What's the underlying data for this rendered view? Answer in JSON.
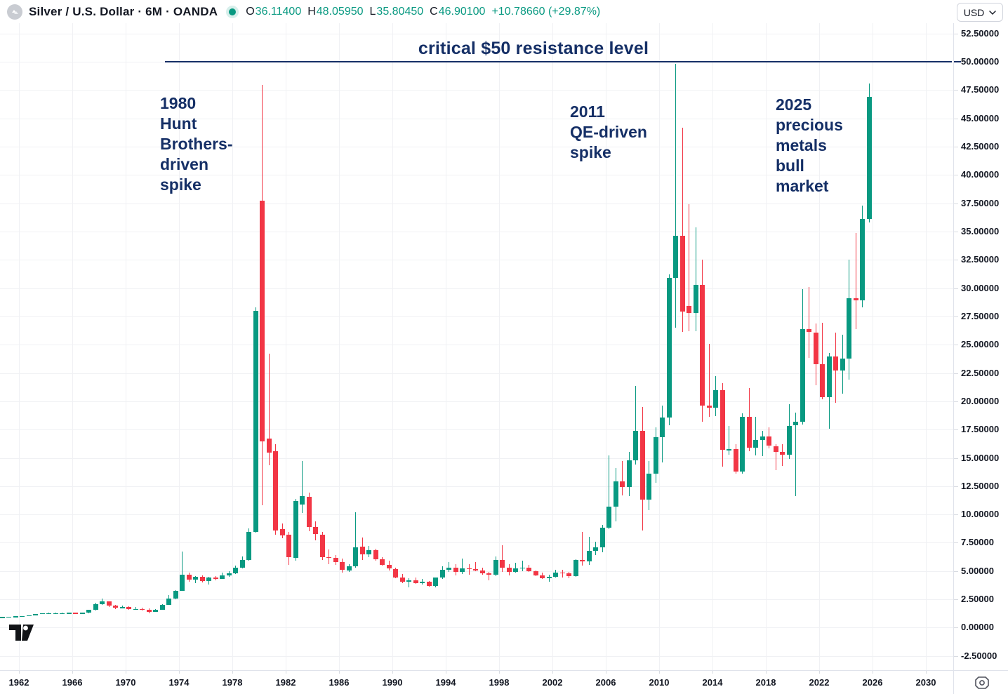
{
  "header": {
    "title": "Silver / U.S. Dollar · 6M · OANDA",
    "ohlc": {
      "o_label": "O",
      "o_value": "36.11400",
      "h_label": "H",
      "h_value": "48.05950",
      "l_label": "L",
      "l_value": "35.80450",
      "c_label": "C",
      "c_value": "46.90100",
      "change": "+10.78660 (+29.87%)"
    }
  },
  "currency_selector": {
    "value": "USD"
  },
  "annotations": {
    "resistance_label": "critical $50 resistance level",
    "a1980": "1980\nHunt\nBrothers-\ndriven\nspike",
    "a2011": "2011\nQE-driven\nspike",
    "a2025": "2025\nprecious\nmetals\nbull\nmarket"
  },
  "colors": {
    "up": "#089981",
    "down": "#f23645",
    "annotation": "#152f66",
    "axis_text": "#131722",
    "grid": "#f0f1f4"
  },
  "chart_data": {
    "type": "candlestick",
    "title": "Silver / U.S. Dollar",
    "timeframe": "6M",
    "exchange": "OANDA",
    "resistance_level": 50,
    "y_ticks": [
      -2.5,
      0,
      2.5,
      5,
      7.5,
      10,
      12.5,
      15,
      17.5,
      20,
      22.5,
      25,
      27.5,
      30,
      32.5,
      35,
      37.5,
      40,
      42.5,
      45,
      47.5,
      50,
      52.5
    ],
    "x_ticks": [
      1962,
      1966,
      1970,
      1974,
      1978,
      1982,
      1986,
      1990,
      1994,
      1998,
      2002,
      2006,
      2010,
      2014,
      2018,
      2022,
      2026,
      2030
    ],
    "series_format": [
      "period",
      "open",
      "high",
      "low",
      "close"
    ],
    "series": [
      [
        "1960H1",
        0.92,
        0.94,
        0.9,
        0.92
      ],
      [
        "1960H2",
        0.92,
        0.94,
        0.9,
        0.93
      ],
      [
        "1961H1",
        0.93,
        0.96,
        0.91,
        0.94
      ],
      [
        "1961H2",
        0.94,
        1.0,
        0.92,
        0.99
      ],
      [
        "1962H1",
        0.99,
        1.05,
        0.97,
        1.04
      ],
      [
        "1962H2",
        1.04,
        1.1,
        1.02,
        1.09
      ],
      [
        "1963H1",
        1.09,
        1.22,
        1.07,
        1.21
      ],
      [
        "1963H2",
        1.21,
        1.29,
        1.19,
        1.28
      ],
      [
        "1964H1",
        1.28,
        1.3,
        1.26,
        1.29
      ],
      [
        "1964H2",
        1.29,
        1.3,
        1.27,
        1.29
      ],
      [
        "1965H1",
        1.29,
        1.3,
        1.27,
        1.29
      ],
      [
        "1965H2",
        1.29,
        1.31,
        1.27,
        1.3
      ],
      [
        "1966H1",
        1.3,
        1.31,
        1.28,
        1.29
      ],
      [
        "1966H2",
        1.29,
        1.31,
        1.28,
        1.3
      ],
      [
        "1967H1",
        1.3,
        1.6,
        1.28,
        1.55
      ],
      [
        "1967H2",
        1.55,
        2.2,
        1.53,
        2.06
      ],
      [
        "1968H1",
        2.06,
        2.56,
        2.0,
        2.3
      ],
      [
        "1968H2",
        2.3,
        2.35,
        1.85,
        1.95
      ],
      [
        "1969H1",
        1.95,
        2.02,
        1.65,
        1.76
      ],
      [
        "1969H2",
        1.76,
        1.95,
        1.68,
        1.8
      ],
      [
        "1970H1",
        1.8,
        1.86,
        1.57,
        1.63
      ],
      [
        "1970H2",
        1.63,
        1.8,
        1.55,
        1.64
      ],
      [
        "1971H1",
        1.64,
        1.75,
        1.52,
        1.6
      ],
      [
        "1971H2",
        1.6,
        1.68,
        1.28,
        1.39
      ],
      [
        "1972H1",
        1.39,
        1.62,
        1.36,
        1.58
      ],
      [
        "1972H2",
        1.58,
        2.05,
        1.56,
        2.03
      ],
      [
        "1973H1",
        2.03,
        2.9,
        1.98,
        2.56
      ],
      [
        "1973H2",
        2.56,
        3.3,
        2.5,
        3.27
      ],
      [
        "1974H1",
        3.27,
        6.7,
        3.22,
        4.65
      ],
      [
        "1974H2",
        4.65,
        4.85,
        4.05,
        4.25
      ],
      [
        "1975H1",
        4.25,
        4.58,
        3.95,
        4.47
      ],
      [
        "1975H2",
        4.47,
        4.62,
        3.98,
        4.1
      ],
      [
        "1976H1",
        4.1,
        4.52,
        3.83,
        4.4
      ],
      [
        "1976H2",
        4.4,
        4.58,
        4.18,
        4.33
      ],
      [
        "1977H1",
        4.33,
        4.86,
        4.28,
        4.62
      ],
      [
        "1977H2",
        4.62,
        4.98,
        4.5,
        4.81
      ],
      [
        "1978H1",
        4.81,
        5.46,
        4.75,
        5.32
      ],
      [
        "1978H2",
        5.32,
        6.3,
        5.22,
        5.96
      ],
      [
        "1979H1",
        5.96,
        8.8,
        5.9,
        8.45
      ],
      [
        "1979H2",
        8.45,
        28.3,
        8.4,
        28.0
      ],
      [
        "1980H1",
        37.75,
        47.98,
        10.8,
        16.45
      ],
      [
        "1980H2",
        16.7,
        24.2,
        14.35,
        15.45
      ],
      [
        "1981H1",
        15.6,
        16.2,
        8.2,
        8.55
      ],
      [
        "1981H2",
        8.7,
        9.2,
        7.9,
        8.15
      ],
      [
        "1982H1",
        8.2,
        8.45,
        5.55,
        6.2
      ],
      [
        "1982H2",
        6.15,
        11.4,
        5.9,
        11.2
      ],
      [
        "1983H1",
        10.9,
        14.72,
        10.15,
        11.6
      ],
      [
        "1983H2",
        11.55,
        11.95,
        8.5,
        8.9
      ],
      [
        "1984H1",
        8.9,
        9.4,
        7.7,
        8.3
      ],
      [
        "1984H2",
        8.2,
        8.45,
        6.0,
        6.25
      ],
      [
        "1985H1",
        6.25,
        6.9,
        5.6,
        6.15
      ],
      [
        "1985H2",
        6.15,
        6.4,
        5.55,
        5.8
      ],
      [
        "1986H1",
        5.8,
        6.1,
        4.85,
        5.1
      ],
      [
        "1986H2",
        5.05,
        5.6,
        4.95,
        5.45
      ],
      [
        "1987H1",
        5.4,
        10.2,
        5.3,
        7.1
      ],
      [
        "1987H2",
        7.15,
        7.95,
        6.0,
        6.45
      ],
      [
        "1988H1",
        6.45,
        7.2,
        6.2,
        6.85
      ],
      [
        "1988H2",
        6.85,
        7.0,
        5.9,
        6.05
      ],
      [
        "1989H1",
        6.05,
        6.2,
        5.45,
        5.55
      ],
      [
        "1989H2",
        5.55,
        5.9,
        5.05,
        5.2
      ],
      [
        "1990H1",
        5.2,
        5.3,
        4.35,
        4.45
      ],
      [
        "1990H2",
        4.45,
        4.72,
        3.93,
        4.05
      ],
      [
        "1991H1",
        4.05,
        4.35,
        3.55,
        4.2
      ],
      [
        "1991H2",
        4.2,
        4.45,
        3.85,
        3.9
      ],
      [
        "1992H1",
        3.95,
        4.3,
        3.8,
        4.05
      ],
      [
        "1992H2",
        4.05,
        4.12,
        3.64,
        3.7
      ],
      [
        "1993H1",
        3.7,
        4.45,
        3.55,
        4.4
      ],
      [
        "1993H2",
        4.4,
        5.45,
        4.3,
        5.1
      ],
      [
        "1994H1",
        5.1,
        5.78,
        4.95,
        5.3
      ],
      [
        "1994H2",
        5.3,
        5.6,
        4.6,
        4.9
      ],
      [
        "1995H1",
        4.9,
        6.1,
        4.75,
        5.25
      ],
      [
        "1995H2",
        5.25,
        5.62,
        4.7,
        5.15
      ],
      [
        "1996H1",
        5.15,
        5.8,
        5.0,
        5.05
      ],
      [
        "1996H2",
        5.05,
        5.3,
        4.7,
        4.8
      ],
      [
        "1997H1",
        4.8,
        4.92,
        4.18,
        4.7
      ],
      [
        "1997H2",
        4.7,
        6.3,
        4.55,
        6.0
      ],
      [
        "1998H1",
        6.0,
        7.26,
        4.9,
        5.3
      ],
      [
        "1998H2",
        5.3,
        5.58,
        4.6,
        4.9
      ],
      [
        "1999H1",
        4.9,
        5.76,
        4.85,
        5.25
      ],
      [
        "1999H2",
        5.25,
        5.92,
        5.0,
        5.32
      ],
      [
        "2000H1",
        5.32,
        5.55,
        4.9,
        4.98
      ],
      [
        "2000H2",
        4.98,
        5.05,
        4.55,
        4.62
      ],
      [
        "2001H1",
        4.62,
        4.85,
        4.3,
        4.36
      ],
      [
        "2001H2",
        4.36,
        4.66,
        4.03,
        4.52
      ],
      [
        "2002H1",
        4.52,
        5.1,
        4.4,
        4.86
      ],
      [
        "2002H2",
        4.86,
        5.12,
        4.4,
        4.79
      ],
      [
        "2003H1",
        4.79,
        4.92,
        4.35,
        4.55
      ],
      [
        "2003H2",
        4.55,
        6.02,
        4.5,
        5.96
      ],
      [
        "2004H1",
        5.96,
        8.45,
        5.5,
        5.86
      ],
      [
        "2004H2",
        5.86,
        8.05,
        5.55,
        6.81
      ],
      [
        "2005H1",
        6.81,
        7.62,
        6.4,
        7.09
      ],
      [
        "2005H2",
        7.09,
        9.05,
        6.64,
        8.82
      ],
      [
        "2006H1",
        8.82,
        15.2,
        8.7,
        10.7
      ],
      [
        "2006H2",
        10.7,
        14.1,
        9.4,
        12.9
      ],
      [
        "2007H1",
        12.9,
        14.7,
        11.7,
        12.45
      ],
      [
        "2007H2",
        12.45,
        15.5,
        11.6,
        14.8
      ],
      [
        "2008H1",
        14.8,
        21.35,
        14.4,
        17.4
      ],
      [
        "2008H2",
        17.4,
        19.5,
        8.6,
        11.3
      ],
      [
        "2009H1",
        11.3,
        14.7,
        10.4,
        13.6
      ],
      [
        "2009H2",
        13.6,
        17.7,
        12.8,
        16.85
      ],
      [
        "2010H1",
        16.85,
        19.6,
        14.6,
        18.55
      ],
      [
        "2010H2",
        18.55,
        31.2,
        17.9,
        30.9
      ],
      [
        "2011H1",
        30.9,
        49.8,
        26.5,
        34.6
      ],
      [
        "2011H2",
        34.6,
        44.2,
        26.1,
        27.9
      ],
      [
        "2012H1",
        28.4,
        37.4,
        26.2,
        27.8
      ],
      [
        "2012H2",
        27.8,
        35.4,
        26.2,
        30.3
      ],
      [
        "2013H1",
        30.3,
        32.5,
        18.2,
        19.6
      ],
      [
        "2013H2",
        19.6,
        25.1,
        18.6,
        19.4
      ],
      [
        "2014H1",
        19.4,
        22.2,
        18.7,
        21.0
      ],
      [
        "2014H2",
        21.0,
        21.6,
        14.2,
        15.7
      ],
      [
        "2015H1",
        15.7,
        17.8,
        15.25,
        15.75
      ],
      [
        "2015H2",
        15.75,
        16.2,
        13.6,
        13.8
      ],
      [
        "2016H1",
        13.8,
        18.95,
        13.6,
        18.65
      ],
      [
        "2016H2",
        18.65,
        21.15,
        15.6,
        15.9
      ],
      [
        "2017H1",
        15.9,
        18.65,
        15.2,
        16.6
      ],
      [
        "2017H2",
        16.6,
        17.4,
        15.15,
        16.9
      ],
      [
        "2018H1",
        16.9,
        17.7,
        15.8,
        16.05
      ],
      [
        "2018H2",
        16.05,
        16.2,
        13.9,
        15.5
      ],
      [
        "2019H1",
        15.5,
        16.2,
        14.3,
        15.3
      ],
      [
        "2019H2",
        15.3,
        19.75,
        14.9,
        17.85
      ],
      [
        "2020H1",
        17.85,
        19.0,
        11.64,
        18.2
      ],
      [
        "2020H2",
        18.2,
        29.9,
        17.95,
        26.4
      ],
      [
        "2021H1",
        26.4,
        30.1,
        23.8,
        26.1
      ],
      [
        "2021H2",
        26.1,
        26.9,
        21.4,
        23.3
      ],
      [
        "2022H1",
        23.3,
        26.95,
        20.2,
        20.35
      ],
      [
        "2022H2",
        20.35,
        24.3,
        17.56,
        23.95
      ],
      [
        "2023H1",
        23.95,
        26.1,
        19.9,
        22.7
      ],
      [
        "2023H2",
        22.7,
        25.9,
        20.7,
        23.8
      ],
      [
        "2024H1",
        23.8,
        32.5,
        21.9,
        29.1
      ],
      [
        "2024H2",
        29.1,
        34.9,
        26.4,
        28.9
      ],
      [
        "2025H1",
        28.9,
        37.3,
        28.3,
        36.1
      ],
      [
        "2025H2",
        36.114,
        48.0595,
        35.8045,
        46.901
      ]
    ]
  }
}
